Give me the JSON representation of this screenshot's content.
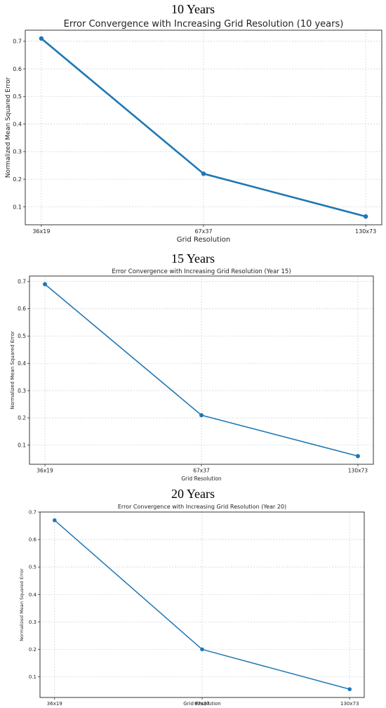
{
  "panels": [
    {
      "heading": "10 Years",
      "chart_data": {
        "type": "line",
        "title": "Error Convergence with Increasing Grid Resolution (10 years)",
        "xlabel": "Grid Resolution",
        "ylabel": "Normalized Mean Squared Error",
        "categories": [
          "36x19",
          "67x37",
          "130x73"
        ],
        "values": [
          0.71,
          0.22,
          0.065
        ],
        "yticks": [
          "0.1",
          "0.2",
          "0.3",
          "0.4",
          "0.5",
          "0.6",
          "0.7"
        ],
        "ylim": [
          0.035,
          0.74
        ],
        "grid": true,
        "color": "#1f77b4"
      }
    },
    {
      "heading": "15 Years",
      "chart_data": {
        "type": "line",
        "title": "Error Convergence with Increasing Grid Resolution (Year 15)",
        "xlabel": "Grid Resolution",
        "ylabel": "Normalized Mean Squared Error",
        "categories": [
          "36x19",
          "67x37",
          "130x73"
        ],
        "values": [
          0.69,
          0.21,
          0.06
        ],
        "yticks": [
          "0.1",
          "0.2",
          "0.3",
          "0.4",
          "0.5",
          "0.6",
          "0.7"
        ],
        "ylim": [
          0.03,
          0.72
        ],
        "grid": true,
        "color": "#1f77b4"
      }
    },
    {
      "heading": "20 Years",
      "chart_data": {
        "type": "line",
        "title": "Error Convergence with Increasing Grid Resolution (Year 20)",
        "xlabel": "Grid Resolution",
        "ylabel": "Normalized Mean Squared Error",
        "categories": [
          "36x19",
          "67x37",
          "130x73"
        ],
        "values": [
          0.67,
          0.2,
          0.055
        ],
        "yticks": [
          "0.1",
          "0.2",
          "0.3",
          "0.4",
          "0.5",
          "0.6",
          "0.7"
        ],
        "ylim": [
          0.025,
          0.7
        ],
        "grid": true,
        "color": "#1f77b4"
      }
    }
  ]
}
